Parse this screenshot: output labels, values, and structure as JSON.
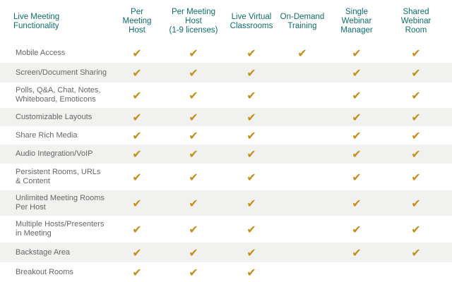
{
  "table": {
    "headers": [
      "Live Meeting\nFunctionality",
      "Per\nMeeting\nHost",
      "Per Meeting\nHost\n(1-9 licenses)",
      "Live Virtual\nClassrooms",
      "On-Demand\nTraining",
      "Single\nWebinar\nManager",
      "Shared\nWebinar\nRoom"
    ],
    "check_glyph": "✔",
    "check_color": "#c5901a",
    "header_color": "#0d6e6a",
    "rows": [
      {
        "label": "Mobile Access",
        "checks": [
          true,
          true,
          true,
          true,
          true,
          true
        ]
      },
      {
        "label": "Screen/Document Sharing",
        "checks": [
          true,
          true,
          true,
          false,
          true,
          true
        ]
      },
      {
        "label": "Polls, Q&A, Chat, Notes,\nWhiteboard, Emoticons",
        "checks": [
          true,
          true,
          true,
          false,
          true,
          true
        ]
      },
      {
        "label": "Customizable Layouts",
        "checks": [
          true,
          true,
          true,
          false,
          true,
          true
        ]
      },
      {
        "label": "Share Rich Media",
        "checks": [
          true,
          true,
          true,
          false,
          true,
          true
        ]
      },
      {
        "label": "Audio Integration/VoIP",
        "checks": [
          true,
          true,
          true,
          false,
          true,
          true
        ]
      },
      {
        "label": "Persistent Rooms, URLs\n& Content",
        "checks": [
          true,
          true,
          true,
          false,
          true,
          true
        ]
      },
      {
        "label": "Unlimited Meeting Rooms\nPer Host",
        "checks": [
          true,
          true,
          true,
          false,
          true,
          true
        ]
      },
      {
        "label": "Multiple Hosts/Presenters\nin Meeting",
        "checks": [
          true,
          true,
          true,
          false,
          true,
          true
        ]
      },
      {
        "label": "Backstage Area",
        "checks": [
          true,
          true,
          true,
          false,
          true,
          true
        ]
      },
      {
        "label": "Breakout Rooms",
        "checks": [
          true,
          true,
          true,
          false,
          false,
          false
        ]
      }
    ]
  }
}
